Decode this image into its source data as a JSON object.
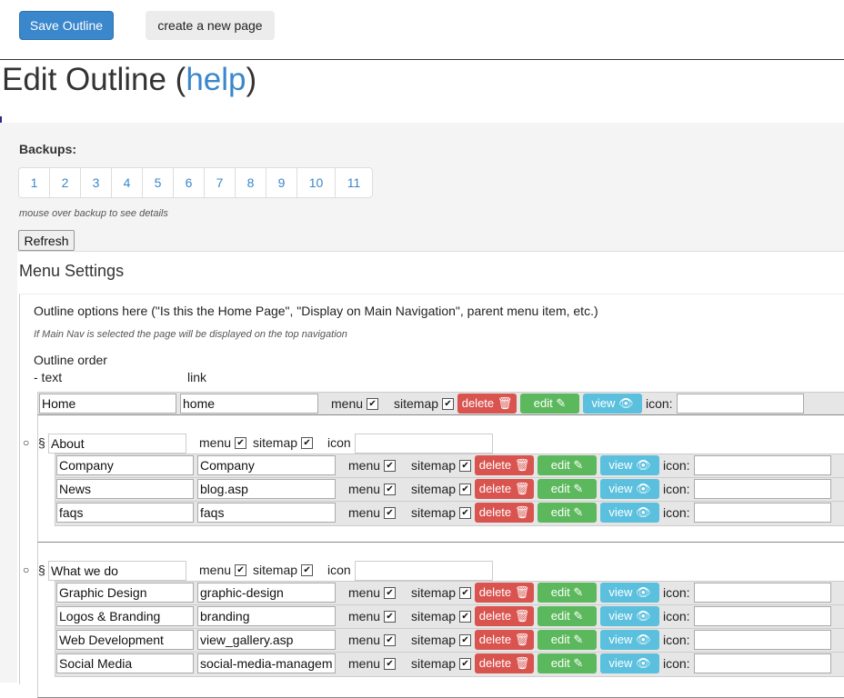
{
  "toolbar": {
    "save_label": "Save Outline",
    "new_page_label": "create a new page"
  },
  "title": {
    "prefix": "Edit Outline (",
    "help_link": "help",
    "suffix": ")"
  },
  "backups": {
    "label": "Backups:",
    "pages": [
      "1",
      "2",
      "3",
      "4",
      "5",
      "6",
      "7",
      "8",
      "9",
      "10",
      "11"
    ],
    "hint": "mouse over backup to see details",
    "refresh_label": "Refresh"
  },
  "menu_settings": {
    "title": "Menu Settings",
    "options_text": "Outline options here (\"Is this the Home Page\", \"Display on Main Navigation\", parent menu item, etc.)",
    "main_nav_note": "If Main Nav is selected the page will be displayed on the top navigation",
    "order_label": "Outline order",
    "col_text": "- text",
    "col_link": "link"
  },
  "row_labels": {
    "menu": "menu",
    "sitemap": "sitemap",
    "delete": "delete",
    "edit": "edit",
    "view": "view",
    "icon": "icon:",
    "group_icon": "icon",
    "check": "✔",
    "bullet": "○",
    "section": "§"
  },
  "home_row": {
    "text": "Home",
    "link": "home",
    "icon": ""
  },
  "groups": [
    {
      "name": "About",
      "icon": "",
      "items": [
        {
          "text": "Company",
          "link": "Company",
          "icon": ""
        },
        {
          "text": "News",
          "link": "blog.asp",
          "icon": ""
        },
        {
          "text": "faqs",
          "link": "faqs",
          "icon": ""
        }
      ]
    },
    {
      "name": "What we do",
      "icon": "",
      "items": [
        {
          "text": "Graphic Design",
          "link": "graphic-design",
          "icon": ""
        },
        {
          "text": "Logos & Branding",
          "link": "branding",
          "icon": ""
        },
        {
          "text": "Web Development",
          "link": "view_gallery.asp",
          "icon": ""
        },
        {
          "text": "Social Media",
          "link": "social-media-management",
          "icon": ""
        }
      ]
    }
  ],
  "colors": {
    "primary": "#3a87cc",
    "delete": "#d9534f",
    "edit": "#5cb85c",
    "view": "#5bc0de"
  }
}
